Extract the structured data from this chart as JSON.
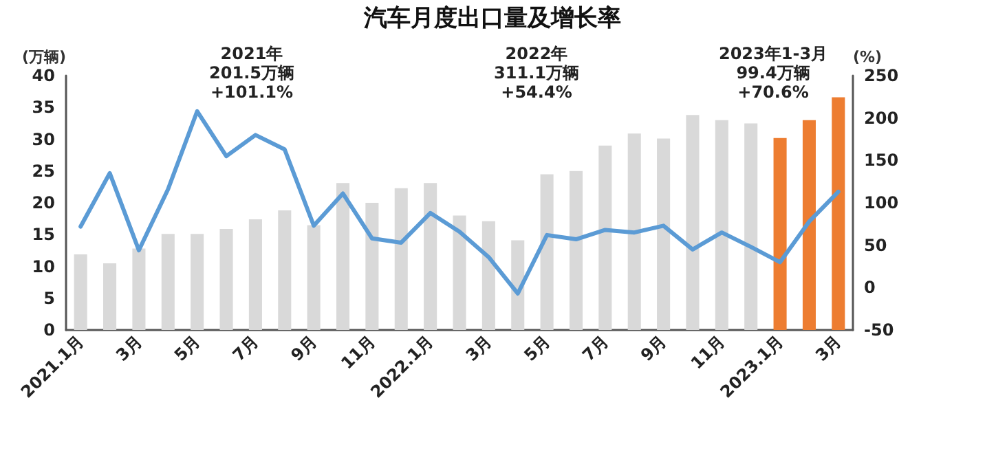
{
  "chart_data": {
    "type": "bar",
    "title": "汽车月度出口量及增长率",
    "ylabel": "(万辆)",
    "y2label": "(%)",
    "categories": [
      "2021.1月",
      null,
      "3月",
      null,
      "5月",
      null,
      "7月",
      null,
      "9月",
      null,
      "11月",
      null,
      "2022.1月",
      null,
      "3月",
      null,
      "5月",
      null,
      "7月",
      null,
      "9月",
      null,
      "11月",
      null,
      "2023.1月",
      null,
      "3月"
    ],
    "series": [
      {
        "colors": [
          "#d9d9d9",
          "#d9d9d9",
          "#d9d9d9",
          "#d9d9d9",
          "#d9d9d9",
          "#d9d9d9",
          "#d9d9d9",
          "#d9d9d9",
          "#d9d9d9",
          "#d9d9d9",
          "#d9d9d9",
          "#d9d9d9",
          "#d9d9d9",
          "#d9d9d9",
          "#d9d9d9",
          "#d9d9d9",
          "#d9d9d9",
          "#d9d9d9",
          "#d9d9d9",
          "#d9d9d9",
          "#d9d9d9",
          "#d9d9d9",
          "#d9d9d9",
          "#d9d9d9",
          "#ed7d31",
          "#ed7d31",
          "#ed7d31"
        ],
        "values": [
          11.9,
          10.5,
          12.8,
          15.1,
          15.1,
          15.9,
          17.4,
          18.8,
          16.5,
          23.1,
          20,
          22.3,
          23.1,
          18,
          17.1,
          14.1,
          24.5,
          25,
          29,
          30.9,
          30.1,
          33.8,
          33,
          32.5,
          30.2,
          33,
          36.6
        ]
      },
      {
        "type": "line",
        "axis": "y2",
        "color": "#5b9bd5",
        "values": [
          72,
          135,
          44,
          116,
          208,
          155,
          180,
          163,
          73,
          111,
          58,
          53,
          88,
          66,
          36,
          -7,
          62,
          57,
          68,
          65,
          73,
          45,
          65,
          48,
          30,
          78,
          113
        ]
      }
    ],
    "ylim": [
      0,
      40
    ],
    "yticks": [
      0,
      5,
      10,
      15,
      20,
      25,
      30,
      35,
      40
    ],
    "y2lim": [
      -50,
      250
    ],
    "y2ticks": [
      -50,
      0,
      50,
      100,
      150,
      200,
      250
    ],
    "grid": false,
    "marker": "none",
    "line_style": "solid",
    "annotations": [
      "2021年\n201.5万辆\n+101.1%",
      "2022年\n311.1万辆\n+54.4%",
      "2023年1-3月\n99.4万辆\n+70.6%"
    ]
  }
}
